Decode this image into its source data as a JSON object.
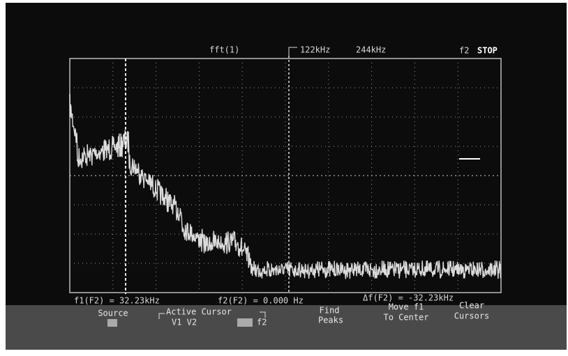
{
  "header": {
    "source": "fft(1)",
    "markers": [
      "122kHz",
      "244kHz"
    ],
    "channel": "f2",
    "status": "STOP"
  },
  "readouts": [
    "f1(F2) = 32.23kHz",
    "f2(F2) = 0.000 Hz",
    "Δf(F2) = -32.23kHz"
  ],
  "softkeys": [
    {
      "lines": [
        "Source"
      ]
    },
    {
      "lines": [
        "Active Cursor",
        "V1 V2",
        "f2"
      ]
    },
    {
      "lines": [
        "Find",
        "Peaks"
      ]
    },
    {
      "lines": [
        "Move f1",
        "To Center"
      ]
    },
    {
      "lines": [
        "Clear",
        "Cursors"
      ]
    }
  ]
}
